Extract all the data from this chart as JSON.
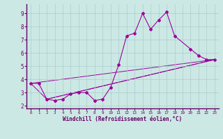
{
  "xlabel": "Windchill (Refroidissement éolien,°C)",
  "bg_color": "#cce8e4",
  "grid_color": "#aacccc",
  "spine_color": "#660066",
  "line_color": "#990099",
  "tick_color": "#660066",
  "label_color": "#660066",
  "xlim": [
    -0.5,
    23.5
  ],
  "ylim": [
    1.8,
    9.7
  ],
  "yticks": [
    2,
    3,
    4,
    5,
    6,
    7,
    8,
    9
  ],
  "xticks": [
    0,
    1,
    2,
    3,
    4,
    5,
    6,
    7,
    8,
    9,
    10,
    11,
    12,
    13,
    14,
    15,
    16,
    17,
    18,
    19,
    20,
    21,
    22,
    23
  ],
  "line1_x": [
    0,
    1,
    2,
    3,
    4,
    5,
    6,
    7,
    8,
    9,
    10,
    11,
    12,
    13,
    14,
    15,
    16,
    17,
    18,
    20,
    21,
    22,
    23
  ],
  "line1_y": [
    3.7,
    3.7,
    2.5,
    2.4,
    2.5,
    2.9,
    3.0,
    3.0,
    2.4,
    2.5,
    3.4,
    5.1,
    7.3,
    7.5,
    9.0,
    7.8,
    8.5,
    9.1,
    7.3,
    6.3,
    5.8,
    5.5,
    5.5
  ],
  "line2_x": [
    0,
    23
  ],
  "line2_y": [
    3.7,
    5.5
  ],
  "line3_x": [
    2,
    23
  ],
  "line3_y": [
    2.5,
    5.5
  ],
  "line4_x": [
    0,
    2,
    23
  ],
  "line4_y": [
    3.7,
    2.5,
    5.5
  ]
}
